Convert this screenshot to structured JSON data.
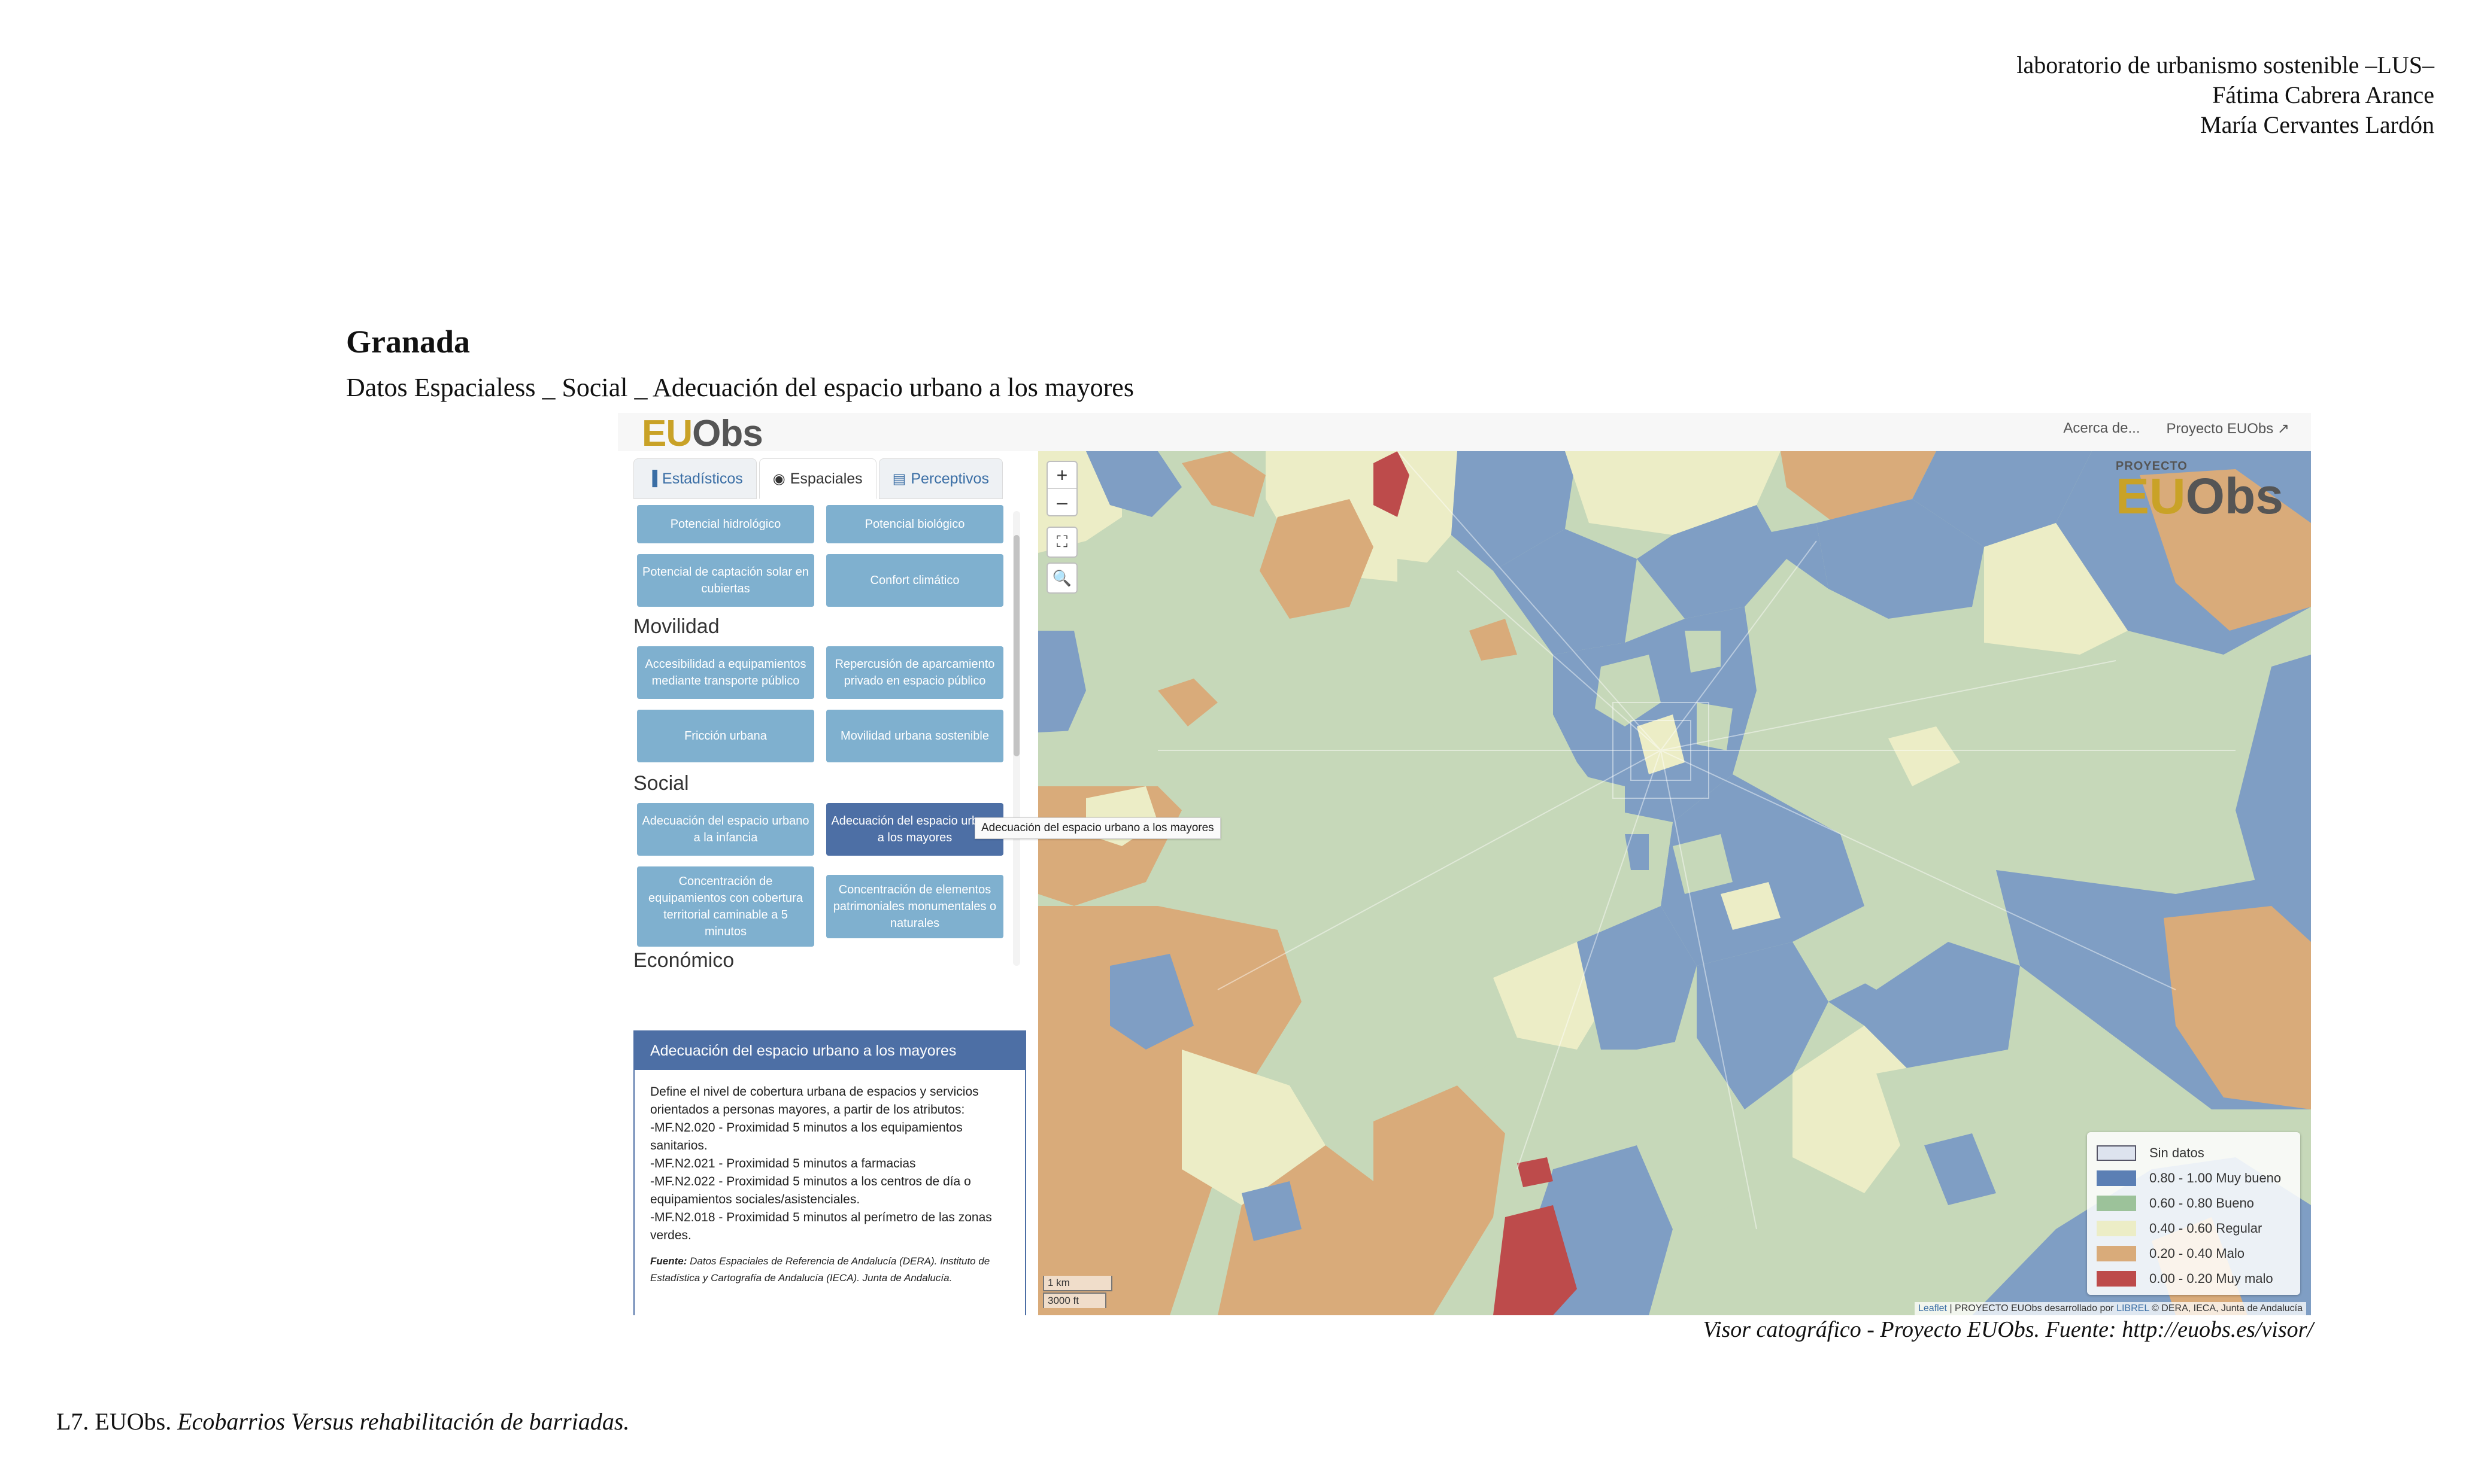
{
  "header": {
    "credits": [
      "laboratorio de urbanismo sostenible –LUS–",
      "Fátima Cabrera Arance",
      "María Cervantes Lardón"
    ],
    "city": "Granada",
    "subtitle": "Datos Espacialess _ Social _ Adecuación del espacio urbano a los mayores"
  },
  "app": {
    "logo_eu": "EU",
    "logo_obs": "Obs",
    "top_links": [
      "Acerca de...",
      "Proyecto EUObs"
    ],
    "tabs": [
      {
        "label": "Estadísticos",
        "icon": "bar-chart-icon"
      },
      {
        "label": "Espaciales",
        "icon": "map-marker-icon"
      },
      {
        "label": "Perceptivos",
        "icon": "image-icon"
      }
    ],
    "buttons": {
      "hidrologico": "Potencial hidrológico",
      "biologico": "Potencial biológico",
      "solar": "Potencial de captación solar en cubiertas",
      "confort": "Confort climático",
      "accesibilidad": "Accesibilidad a equipamientos mediante transporte público",
      "aparcamiento": "Repercusión de aparcamiento privado en espacio público",
      "friccion": "Fricción urbana",
      "movilidad": "Movilidad urbana sostenible",
      "infancia": "Adecuación del espacio urbano a la infancia",
      "mayores": "Adecuación del espacio urbano a los mayores",
      "equipamientos": "Concentración de equipamientos con cobertura territorial caminable a 5 minutos",
      "patrimoniales": "Concentración de elementos patrimoniales monumentales o naturales"
    },
    "sections": {
      "movilidad": "Movilidad",
      "social": "Social",
      "economico": "Económico"
    },
    "tooltip": "Adecuación del espacio urbano a los mayores",
    "info": {
      "title": "Adecuación del espacio urbano a los mayores",
      "lines": [
        "Define el nivel de cobertura urbana de espacios y servicios orientados a personas mayores, a partir de los atributos:",
        "-MF.N2.020 - Proximidad 5 minutos a los equipamientos sanitarios.",
        "-MF.N2.021 - Proximidad 5 minutos a farmacias",
        "-MF.N2.022 - Proximidad 5 minutos a los centros de día o equipamientos sociales/asistenciales.",
        "-MF.N2.018 - Proximidad 5 minutos al perímetro de las zonas verdes."
      ],
      "source_label": "Fuente:",
      "source_text": "Datos Espaciales de Referencia de Andalucía (DERA). Instituto de Estadística y Cartografía de Andalucía (IECA). Junta de Andalucía."
    },
    "map": {
      "zoom_in": "+",
      "zoom_out": "–",
      "project_label": "PROYECTO",
      "legend": [
        {
          "label": "Sin datos",
          "color": "#dde3ee"
        },
        {
          "label": "0.80 - 1.00 Muy bueno",
          "color": "#5b7fb4"
        },
        {
          "label": "0.60 - 0.80 Bueno",
          "color": "#9cc29a"
        },
        {
          "label": "0.40 - 0.60 Regular",
          "color": "#ecedc6"
        },
        {
          "label": "0.20 - 0.40 Malo",
          "color": "#d9ab7a"
        },
        {
          "label": "0.00 - 0.20 Muy malo",
          "color": "#bd4b4b"
        }
      ],
      "scale_km": "1 km",
      "scale_ft": "3000 ft",
      "attribution_link": "Leaflet",
      "attribution_text": " | PROYECTO EUObs desarrollado por ",
      "attribution_link2": "LIBREL",
      "attribution_tail": " © DERA, IECA, Junta de Andalucía"
    }
  },
  "caption": "Visor catográfico - Proyecto EUObs. Fuente: http://euobs.es/visor/",
  "footer": {
    "prefix": "L7. EUObs. ",
    "italic": "Ecobarrios Versus rehabilitación de barriadas."
  }
}
